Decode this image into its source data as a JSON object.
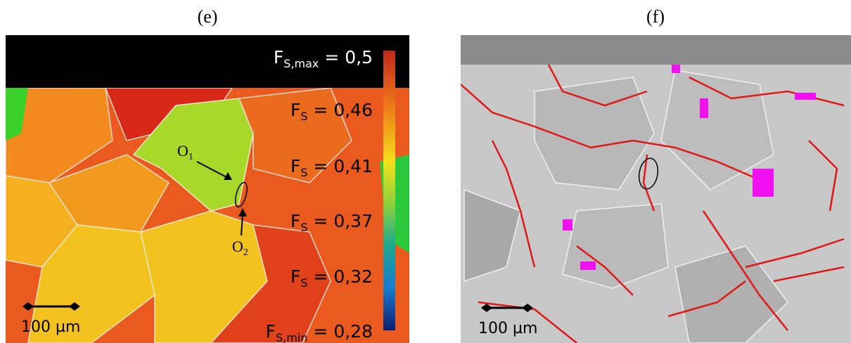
{
  "panels": [
    {
      "label": "(e)",
      "colorbar": {
        "labels": [
          {
            "main": "F",
            "sub": "S,max",
            "rest": " = 0,5"
          },
          {
            "main": "F",
            "sub": "S",
            "rest": " = 0,46"
          },
          {
            "main": "F",
            "sub": "S",
            "rest": " = 0,41"
          },
          {
            "main": "F",
            "sub": "S",
            "rest": " = 0,37"
          },
          {
            "main": "F",
            "sub": "S",
            "rest": " = 0,32"
          },
          {
            "main": "F",
            "sub": "S,min",
            "rest": " = 0,28"
          }
        ]
      },
      "annotations": [
        {
          "main": "O",
          "sub": "1"
        },
        {
          "main": "O",
          "sub": "2"
        }
      ],
      "scale_bar": "100 µm"
    },
    {
      "label": "(f)",
      "scale_bar": "100 µm"
    }
  ]
}
